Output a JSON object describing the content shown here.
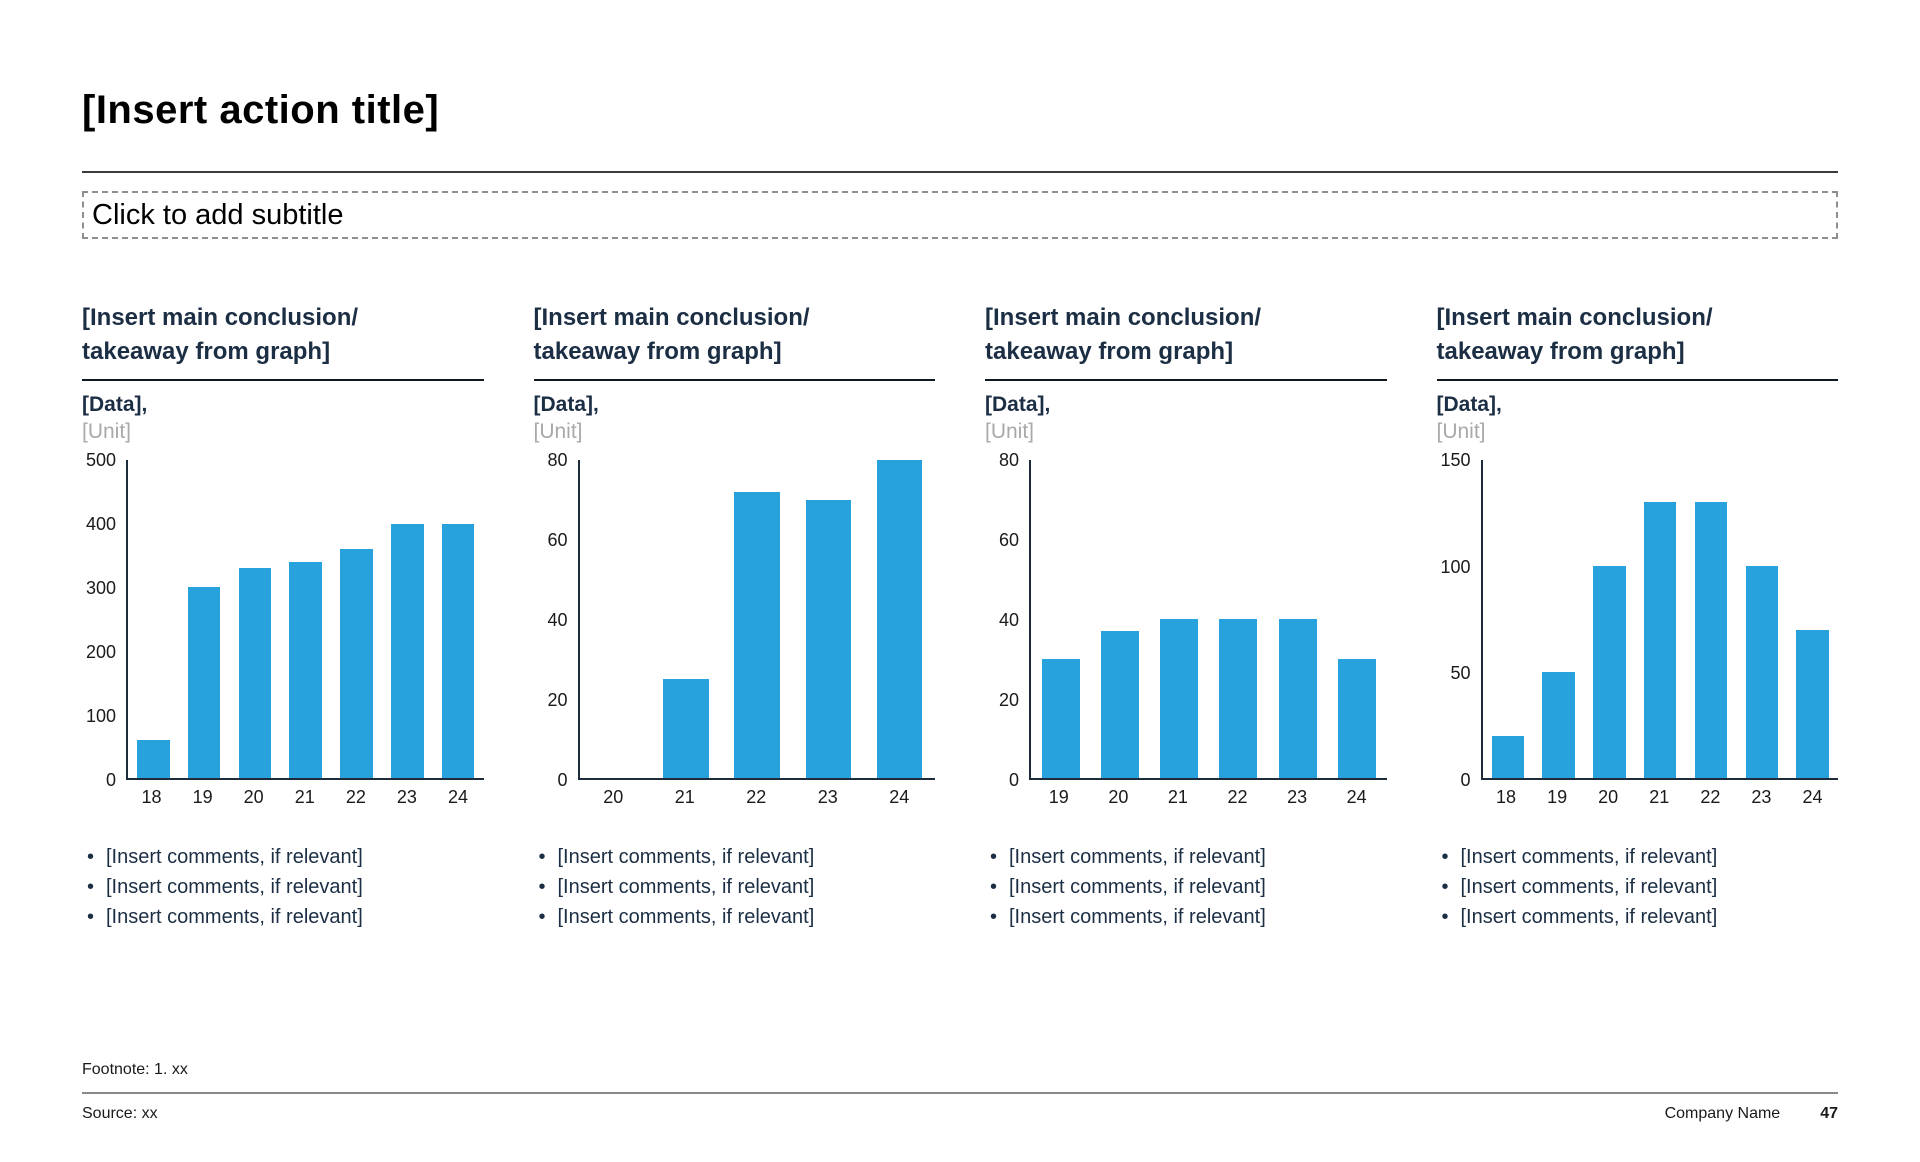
{
  "slide": {
    "title": "[Insert action title]",
    "subtitle_placeholder": "Click to add subtitle",
    "footnote": "Footnote: 1. xx",
    "source": "Source: xx",
    "company_name": "Company Name",
    "page_number": "47"
  },
  "colors": {
    "bar_blue": "#27A2DC",
    "navy_text": "#1B2E44",
    "unit_gray": "#A9A9A9"
  },
  "columns": [
    {
      "heading": "[Insert main conclusion/\ntakeaway from graph]",
      "data_label": "[Data],",
      "unit_label": "[Unit]",
      "comments": [
        "[Insert comments, if relevant]",
        "[Insert comments, if relevant]",
        "[Insert comments, if relevant]"
      ]
    },
    {
      "heading": "[Insert main conclusion/\ntakeaway from graph]",
      "data_label": "[Data],",
      "unit_label": "[Unit]",
      "comments": [
        "[Insert comments, if relevant]",
        "[Insert comments, if relevant]",
        "[Insert comments, if relevant]"
      ]
    },
    {
      "heading": "[Insert main conclusion/\ntakeaway from graph]",
      "data_label": "[Data],",
      "unit_label": "[Unit]",
      "comments": [
        "[Insert comments, if relevant]",
        "[Insert comments, if relevant]",
        "[Insert comments, if relevant]"
      ]
    },
    {
      "heading": "[Insert main conclusion/\ntakeaway from graph]",
      "data_label": "[Data],",
      "unit_label": "[Unit]",
      "comments": [
        "[Insert comments, if relevant]",
        "[Insert comments, if relevant]",
        "[Insert comments, if relevant]"
      ]
    }
  ],
  "chart_data": [
    {
      "type": "bar",
      "title": "[Insert main conclusion/ takeaway from graph]",
      "ylabel": "[Data], [Unit]",
      "categories": [
        "18",
        "19",
        "20",
        "21",
        "22",
        "23",
        "24"
      ],
      "values": [
        60,
        300,
        330,
        340,
        360,
        400,
        400
      ],
      "ylim": [
        0,
        500
      ],
      "yticks": [
        0,
        100,
        200,
        300,
        400,
        500
      ],
      "grid": false,
      "bar_color": "#27A2DC"
    },
    {
      "type": "bar",
      "title": "[Insert main conclusion/ takeaway from graph]",
      "ylabel": "[Data], [Unit]",
      "categories": [
        "20",
        "21",
        "22",
        "23",
        "24"
      ],
      "values": [
        0,
        25,
        72,
        70,
        80
      ],
      "ylim": [
        0,
        80
      ],
      "yticks": [
        0,
        20,
        40,
        60,
        80
      ],
      "grid": false,
      "bar_color": "#27A2DC"
    },
    {
      "type": "bar",
      "title": "[Insert main conclusion/ takeaway from graph]",
      "ylabel": "[Data], [Unit]",
      "categories": [
        "19",
        "20",
        "21",
        "22",
        "23",
        "24"
      ],
      "values": [
        30,
        37,
        40,
        40,
        40,
        30
      ],
      "ylim": [
        0,
        80
      ],
      "yticks": [
        0,
        20,
        40,
        60,
        80
      ],
      "grid": false,
      "bar_color": "#27A2DC"
    },
    {
      "type": "bar",
      "title": "[Insert main conclusion/ takeaway from graph]",
      "ylabel": "[Data], [Unit]",
      "categories": [
        "18",
        "19",
        "20",
        "21",
        "22",
        "23",
        "24"
      ],
      "values": [
        20,
        50,
        100,
        130,
        130,
        100,
        70
      ],
      "ylim": [
        0,
        150
      ],
      "yticks": [
        0,
        50,
        100,
        150
      ],
      "grid": false,
      "bar_color": "#27A2DC"
    }
  ]
}
